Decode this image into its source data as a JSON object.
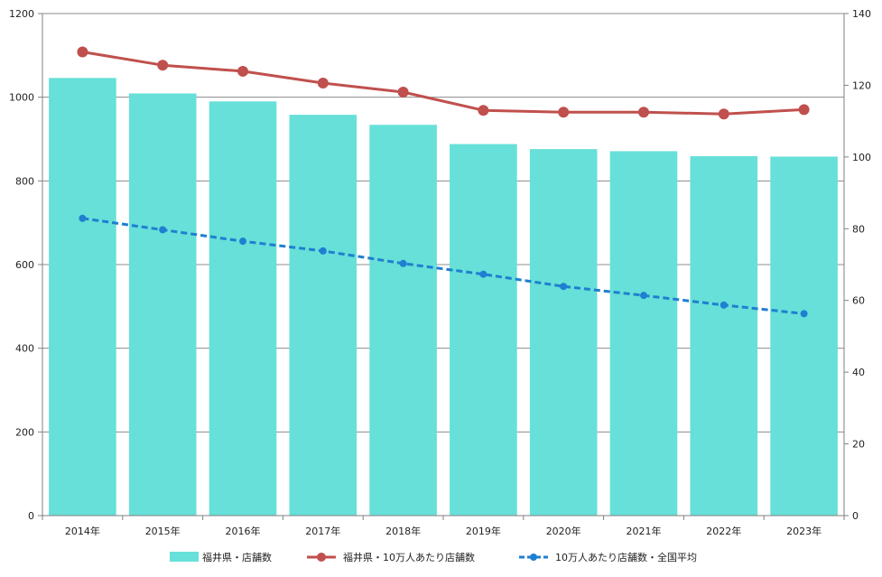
{
  "chart_data": {
    "type": "bar",
    "categories": [
      "2014年",
      "2015年",
      "2016年",
      "2017年",
      "2018年",
      "2019年",
      "2020年",
      "2021年",
      "2022年",
      "2023年"
    ],
    "series": [
      {
        "name": "福井県・店舗数",
        "kind": "bar",
        "axis": "left",
        "color": "#66e0d8",
        "values": [
          1046,
          1009,
          990,
          958,
          934,
          888,
          876,
          871,
          859,
          858
        ]
      },
      {
        "name": "福井県・10万人あたり店舗数",
        "kind": "line",
        "axis": "right",
        "color": "#c0504d",
        "dashed": false,
        "values": [
          129.3,
          125.6,
          123.9,
          120.6,
          118.1,
          113.0,
          112.5,
          112.5,
          112.0,
          113.2
        ]
      },
      {
        "name": "10万人あたり店舗数・全国平均",
        "kind": "line",
        "axis": "right",
        "color": "#1f7fd1",
        "dashed": true,
        "values": [
          82.9,
          79.7,
          76.5,
          73.8,
          70.3,
          67.3,
          63.9,
          61.4,
          58.7,
          56.3
        ]
      }
    ],
    "yleft": {
      "ylim": [
        0,
        1200
      ],
      "ticks": [
        0,
        200,
        400,
        600,
        800,
        1000,
        1200
      ]
    },
    "yright": {
      "ylim": [
        0,
        140
      ],
      "ticks": [
        0,
        20,
        40,
        60,
        80,
        100,
        120,
        140
      ]
    },
    "grid": true,
    "legend_position": "bottom",
    "title": "",
    "xlabel": "",
    "ylabel": ""
  }
}
